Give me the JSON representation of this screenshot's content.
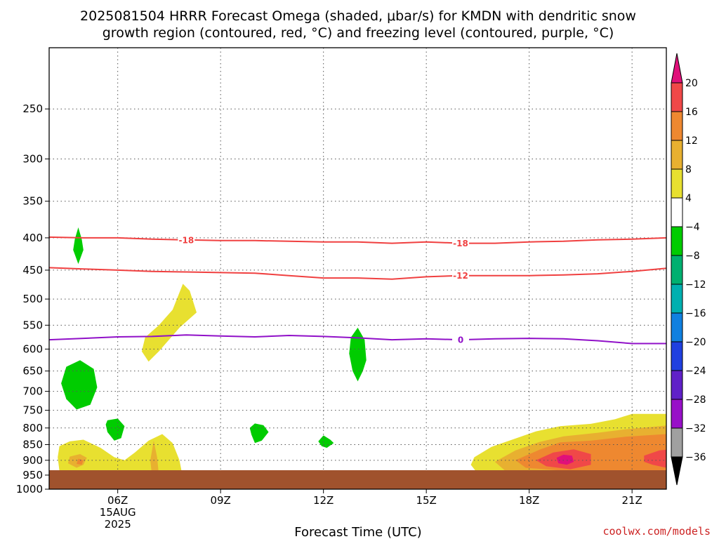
{
  "header": {
    "title_line1": "2025081504 HRRR Forecast Omega (shaded, μbar/s) for KMDN with dendritic snow",
    "title_line2": "growth region (contoured, red, °C) and freezing level (contoured, purple, °C)"
  },
  "footer": {
    "credit": "coolwx.com/models"
  },
  "chart_data": {
    "type": "time-height cross section",
    "xlabel": "Forecast Time (UTC)",
    "x_ticks": [
      {
        "hour": 6,
        "label": "06Z",
        "sub1": "15AUG",
        "sub2": "2025"
      },
      {
        "hour": 9,
        "label": "09Z"
      },
      {
        "hour": 12,
        "label": "12Z"
      },
      {
        "hour": 15,
        "label": "15Z"
      },
      {
        "hour": 18,
        "label": "18Z"
      },
      {
        "hour": 21,
        "label": "21Z"
      }
    ],
    "xlim": [
      4.0,
      22.0
    ],
    "y_ticks": [
      250,
      300,
      350,
      400,
      450,
      500,
      550,
      600,
      650,
      700,
      750,
      800,
      850,
      900,
      950,
      1000
    ],
    "ylim_hpa": [
      200,
      1000
    ],
    "grid": "dotted",
    "ground_color": "#a0522d",
    "contours": [
      {
        "name": "dgz_-18",
        "value": -18,
        "label": "-18",
        "color": "#f04040",
        "points": [
          [
            4.0,
            399
          ],
          [
            5,
            400
          ],
          [
            6,
            400
          ],
          [
            7,
            402
          ],
          [
            8,
            403
          ],
          [
            9,
            404
          ],
          [
            10,
            404
          ],
          [
            11,
            405
          ],
          [
            12,
            406
          ],
          [
            13,
            406
          ],
          [
            14,
            408
          ],
          [
            15,
            406
          ],
          [
            16,
            408
          ],
          [
            17,
            408
          ],
          [
            18,
            406
          ],
          [
            19,
            405
          ],
          [
            20,
            403
          ],
          [
            21,
            402
          ],
          [
            22,
            400
          ]
        ],
        "label_at": [
          [
            8,
            403
          ],
          [
            16,
            408
          ]
        ]
      },
      {
        "name": "dgz_-12",
        "value": -12,
        "label": "-12",
        "color": "#f04040",
        "points": [
          [
            4.0,
            446
          ],
          [
            5,
            448
          ],
          [
            6,
            450
          ],
          [
            7,
            452
          ],
          [
            8,
            453
          ],
          [
            9,
            454
          ],
          [
            10,
            455
          ],
          [
            11,
            459
          ],
          [
            12,
            463
          ],
          [
            13,
            463
          ],
          [
            14,
            465
          ],
          [
            15,
            461
          ],
          [
            16,
            459
          ],
          [
            17,
            459
          ],
          [
            18,
            459
          ],
          [
            19,
            458
          ],
          [
            20,
            456
          ],
          [
            21,
            452
          ],
          [
            22,
            447
          ]
        ],
        "label_at": [
          [
            16,
            459
          ]
        ]
      },
      {
        "name": "freezing_level",
        "value": 0,
        "label": "0",
        "color": "#9010c8",
        "points": [
          [
            4.0,
            580
          ],
          [
            5,
            577
          ],
          [
            6,
            574
          ],
          [
            7,
            573
          ],
          [
            8,
            570
          ],
          [
            9,
            572
          ],
          [
            10,
            574
          ],
          [
            11,
            571
          ],
          [
            12,
            573
          ],
          [
            13,
            576
          ],
          [
            14,
            580
          ],
          [
            15,
            578
          ],
          [
            16,
            580
          ],
          [
            17,
            578
          ],
          [
            18,
            577
          ],
          [
            19,
            578
          ],
          [
            20,
            582
          ],
          [
            21,
            588
          ],
          [
            22,
            588
          ]
        ],
        "label_at": [
          [
            16,
            580
          ]
        ]
      }
    ],
    "omega_regions": [
      {
        "range": "-8..-4",
        "color": "#00cc00",
        "points": [
          [
            4.85,
            385
          ],
          [
            4.95,
            402
          ],
          [
            5.0,
            418
          ],
          [
            4.85,
            440
          ],
          [
            4.7,
            418
          ],
          [
            4.75,
            402
          ]
        ]
      },
      {
        "range": "-8..-4",
        "color": "#00cc00",
        "points": [
          [
            4.5,
            640
          ],
          [
            4.9,
            625
          ],
          [
            5.3,
            645
          ],
          [
            5.4,
            690
          ],
          [
            5.2,
            735
          ],
          [
            4.8,
            748
          ],
          [
            4.5,
            720
          ],
          [
            4.35,
            680
          ]
        ]
      },
      {
        "range": "-8..-4",
        "color": "#00cc00",
        "points": [
          [
            5.7,
            778
          ],
          [
            6.0,
            773
          ],
          [
            6.2,
            795
          ],
          [
            6.1,
            830
          ],
          [
            5.9,
            838
          ],
          [
            5.7,
            812
          ],
          [
            5.65,
            790
          ]
        ]
      },
      {
        "range": "-8..-4",
        "color": "#00cc00",
        "points": [
          [
            10.0,
            787
          ],
          [
            10.25,
            792
          ],
          [
            10.4,
            812
          ],
          [
            10.2,
            838
          ],
          [
            10.0,
            845
          ],
          [
            9.9,
            820
          ],
          [
            9.85,
            800
          ]
        ]
      },
      {
        "range": "-8..-4",
        "color": "#00cc00",
        "points": [
          [
            12.0,
            822
          ],
          [
            12.2,
            835
          ],
          [
            12.3,
            845
          ],
          [
            12.1,
            860
          ],
          [
            11.95,
            855
          ],
          [
            11.85,
            840
          ]
        ]
      },
      {
        "range": "-8..-4",
        "color": "#00cc00",
        "points": [
          [
            13.0,
            555
          ],
          [
            13.2,
            580
          ],
          [
            13.25,
            625
          ],
          [
            13.15,
            650
          ],
          [
            13.0,
            675
          ],
          [
            12.85,
            650
          ],
          [
            12.75,
            610
          ],
          [
            12.8,
            575
          ]
        ]
      },
      {
        "range": "4..8",
        "color": "#e8e030",
        "points": [
          [
            7.9,
            473
          ],
          [
            8.1,
            485
          ],
          [
            8.3,
            525
          ],
          [
            7.8,
            555
          ],
          [
            7.2,
            605
          ],
          [
            6.9,
            628
          ],
          [
            6.7,
            605
          ],
          [
            6.8,
            575
          ],
          [
            7.2,
            550
          ],
          [
            7.6,
            520
          ]
        ]
      },
      {
        "range": "4..8",
        "color": "#e8e030",
        "points": [
          [
            4.3,
            855
          ],
          [
            4.6,
            840
          ],
          [
            5.0,
            835
          ],
          [
            5.5,
            860
          ],
          [
            5.9,
            890
          ],
          [
            6.2,
            900
          ],
          [
            6.5,
            875
          ],
          [
            6.9,
            838
          ],
          [
            7.3,
            818
          ],
          [
            7.6,
            845
          ],
          [
            7.8,
            900
          ],
          [
            7.9,
            960
          ],
          [
            8.0,
            970
          ],
          [
            6.2,
            970
          ],
          [
            5.2,
            967
          ],
          [
            4.5,
            960
          ],
          [
            4.3,
            935
          ],
          [
            4.25,
            890
          ]
        ]
      },
      {
        "range": "8..12",
        "color": "#e8b030",
        "points": [
          [
            4.6,
            888
          ],
          [
            4.9,
            880
          ],
          [
            5.1,
            892
          ],
          [
            5.0,
            915
          ],
          [
            4.8,
            925
          ],
          [
            4.55,
            910
          ]
        ]
      },
      {
        "range": "8..12",
        "color": "#e8b030",
        "points": [
          [
            7.05,
            838
          ],
          [
            7.15,
            890
          ],
          [
            7.2,
            950
          ],
          [
            7.0,
            955
          ],
          [
            6.95,
            900
          ]
        ]
      },
      {
        "range": "12..16",
        "color": "#ee8830",
        "points": [
          [
            4.85,
            895
          ],
          [
            5.0,
            900
          ],
          [
            4.95,
            915
          ],
          [
            4.8,
            912
          ]
        ]
      },
      {
        "range": "4..8",
        "color": "#e8e030",
        "points": [
          [
            16.4,
            890
          ],
          [
            16.9,
            857
          ],
          [
            17.5,
            835
          ],
          [
            18.2,
            810
          ],
          [
            18.9,
            795
          ],
          [
            19.8,
            788
          ],
          [
            20.5,
            775
          ],
          [
            21.0,
            760
          ],
          [
            22.0,
            760
          ],
          [
            22.0,
            980
          ],
          [
            21.0,
            980
          ],
          [
            19.5,
            982
          ],
          [
            18.0,
            975
          ],
          [
            17.0,
            962
          ],
          [
            16.5,
            945
          ],
          [
            16.3,
            915
          ]
        ]
      },
      {
        "range": "8..12",
        "color": "#e8b030",
        "points": [
          [
            17.0,
            905
          ],
          [
            17.6,
            868
          ],
          [
            18.3,
            842
          ],
          [
            19.0,
            825
          ],
          [
            20.0,
            814
          ],
          [
            20.8,
            804
          ],
          [
            22.0,
            793
          ],
          [
            22.0,
            960
          ],
          [
            20.0,
            960
          ],
          [
            18.5,
            952
          ],
          [
            17.3,
            935
          ]
        ]
      },
      {
        "range": "12..16",
        "color": "#ee8830",
        "points": [
          [
            17.6,
            900
          ],
          [
            18.3,
            866
          ],
          [
            18.9,
            843
          ],
          [
            19.8,
            838
          ],
          [
            20.8,
            826
          ],
          [
            22.0,
            818
          ],
          [
            22.0,
            945
          ],
          [
            20.5,
            942
          ],
          [
            19.0,
            935
          ],
          [
            17.9,
            925
          ]
        ]
      },
      {
        "range": "16..20",
        "color": "#f04848",
        "points": [
          [
            18.2,
            900
          ],
          [
            18.7,
            875
          ],
          [
            19.3,
            865
          ],
          [
            19.8,
            880
          ],
          [
            19.8,
            915
          ],
          [
            19.2,
            930
          ],
          [
            18.5,
            920
          ]
        ]
      },
      {
        "range": "16..20",
        "color": "#f04848",
        "points": [
          [
            21.35,
            885
          ],
          [
            21.8,
            868
          ],
          [
            22.0,
            866
          ],
          [
            22.0,
            925
          ],
          [
            21.6,
            915
          ],
          [
            21.35,
            905
          ]
        ]
      },
      {
        "range": ">20",
        "color": "#e0107a",
        "points": [
          [
            18.8,
            892
          ],
          [
            19.0,
            882
          ],
          [
            19.25,
            885
          ],
          [
            19.3,
            905
          ],
          [
            19.1,
            915
          ],
          [
            18.85,
            910
          ]
        ]
      }
    ],
    "colorbar": {
      "label_values": [
        "20",
        "16",
        "12",
        "8",
        "4",
        "−4",
        "−8",
        "−12",
        "−16",
        "−20",
        "−24",
        "−28",
        "−32",
        "−36"
      ],
      "bins": [
        {
          "range": ">20",
          "color": "#e0107a"
        },
        {
          "range": "16..20",
          "color": "#f04848"
        },
        {
          "range": "12..16",
          "color": "#ee8830"
        },
        {
          "range": "8..12",
          "color": "#e8b030"
        },
        {
          "range": "4..8",
          "color": "#e8e030"
        },
        {
          "range": "-4..4",
          "color": "#ffffff"
        },
        {
          "range": "-8..-4",
          "color": "#00cc00"
        },
        {
          "range": "-12..-8",
          "color": "#00b070"
        },
        {
          "range": "-16..-12",
          "color": "#00b0b0"
        },
        {
          "range": "-20..-16",
          "color": "#1080e0"
        },
        {
          "range": "-24..-20",
          "color": "#2040e0"
        },
        {
          "range": "-28..-24",
          "color": "#6020c8"
        },
        {
          "range": "-32..-28",
          "color": "#9810c8"
        },
        {
          "range": "-36..-32",
          "color": "#a0a0a0"
        },
        {
          "range": "<-36",
          "color": "#000000"
        }
      ]
    }
  }
}
